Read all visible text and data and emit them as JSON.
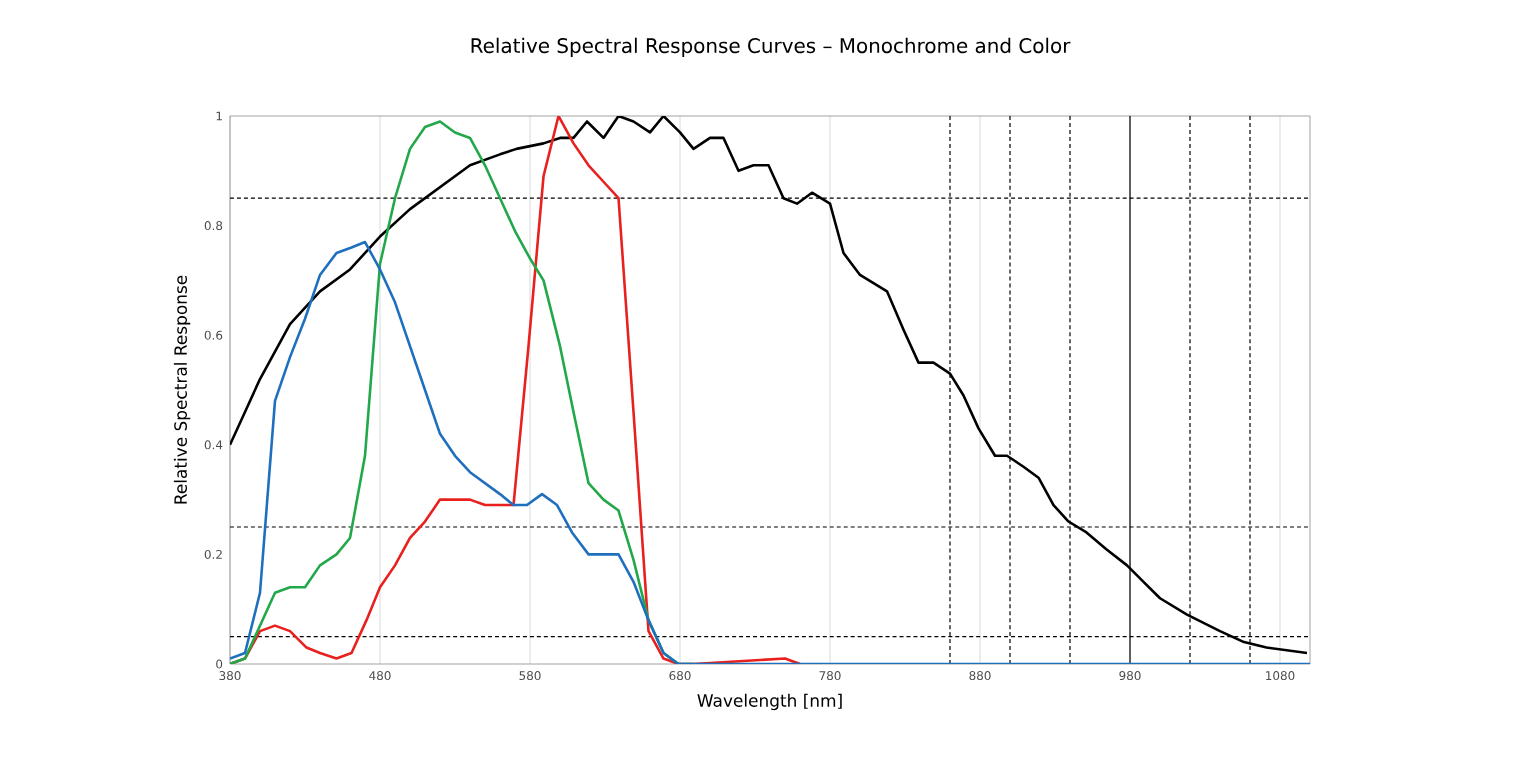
{
  "chart_data": {
    "type": "line",
    "title": "Relative Spectral Response Curves – Monochrome and Color",
    "xlabel": "Wavelength [nm]",
    "ylabel": "Relative Spectral Response",
    "xlim": [
      380,
      1100
    ],
    "xticks": [
      380,
      480,
      580,
      680,
      780,
      880,
      980,
      1080
    ],
    "ylim": [
      0,
      1
    ],
    "yticks": [
      0,
      0.2,
      0.4,
      0.6,
      0.8,
      1
    ],
    "grid": "x",
    "marker": "none",
    "line_style": "solid",
    "ref_lines": [
      {
        "axis": "y",
        "value": 0.85,
        "line_style": "dashed",
        "color": "#000000"
      },
      {
        "axis": "y",
        "value": 0.25,
        "line_style": "dashed",
        "color": "#000000"
      },
      {
        "axis": "y",
        "value": 0.05,
        "line_style": "dashed",
        "color": "#000000"
      },
      {
        "axis": "x",
        "value": 860,
        "line_style": "dashed",
        "color": "#000000"
      },
      {
        "axis": "x",
        "value": 900,
        "line_style": "dashed",
        "color": "#000000"
      },
      {
        "axis": "x",
        "value": 940,
        "line_style": "dashed",
        "color": "#000000"
      },
      {
        "axis": "x",
        "value": 980,
        "line_style": "solid",
        "color": "#000000"
      },
      {
        "axis": "x",
        "value": 1020,
        "line_style": "dashed",
        "color": "#000000"
      },
      {
        "axis": "x",
        "value": 1060,
        "line_style": "dashed",
        "color": "#000000"
      }
    ],
    "series": [
      {
        "color": "#000000",
        "x": [
          380,
          400,
          420,
          440,
          460,
          480,
          500,
          520,
          540,
          560,
          571,
          589,
          600,
          609,
          618,
          629,
          639,
          649,
          660,
          669,
          680,
          689,
          700,
          709,
          719,
          729,
          739,
          749,
          758,
          768,
          780,
          789,
          800,
          818,
          829,
          839,
          849,
          860,
          869,
          879,
          890,
          898,
          909,
          919,
          929,
          939,
          951,
          964,
          978,
          989,
          1000,
          1018,
          1040,
          1056,
          1071,
          1098
        ],
        "values": [
          0.4,
          0.52,
          0.62,
          0.68,
          0.72,
          0.78,
          0.83,
          0.87,
          0.91,
          0.93,
          0.94,
          0.95,
          0.96,
          0.96,
          0.99,
          0.96,
          1.0,
          0.99,
          0.97,
          1.0,
          0.97,
          0.94,
          0.96,
          0.96,
          0.9,
          0.91,
          0.91,
          0.85,
          0.84,
          0.86,
          0.84,
          0.75,
          0.71,
          0.68,
          0.61,
          0.55,
          0.55,
          0.53,
          0.49,
          0.43,
          0.38,
          0.38,
          0.36,
          0.34,
          0.29,
          0.26,
          0.24,
          0.21,
          0.18,
          0.15,
          0.12,
          0.09,
          0.06,
          0.04,
          0.03,
          0.02
        ]
      },
      {
        "color": "#e8201e",
        "x": [
          380,
          390,
          400,
          410,
          420,
          431,
          440,
          451,
          461,
          471,
          480,
          490,
          500,
          510,
          520,
          530,
          540,
          550,
          560,
          569,
          579,
          589,
          599,
          609,
          619,
          629,
          639,
          649,
          659,
          669,
          679,
          689,
          750,
          760
        ],
        "values": [
          0.0,
          0.01,
          0.06,
          0.07,
          0.06,
          0.03,
          0.02,
          0.01,
          0.02,
          0.08,
          0.14,
          0.18,
          0.23,
          0.26,
          0.3,
          0.3,
          0.3,
          0.29,
          0.29,
          0.29,
          0.58,
          0.89,
          1.0,
          0.95,
          0.91,
          0.88,
          0.85,
          0.46,
          0.06,
          0.01,
          0.0,
          0.0,
          0.01,
          0.0
        ]
      },
      {
        "color": "#22a84a",
        "x": [
          380,
          390,
          400,
          410,
          420,
          430,
          440,
          451,
          460,
          470,
          480,
          490,
          500,
          510,
          520,
          530,
          540,
          550,
          560,
          570,
          580,
          589,
          600,
          609,
          619,
          629,
          639,
          649,
          659,
          669,
          679,
          689
        ],
        "values": [
          0.0,
          0.01,
          0.07,
          0.13,
          0.14,
          0.14,
          0.18,
          0.2,
          0.23,
          0.38,
          0.73,
          0.85,
          0.94,
          0.98,
          0.99,
          0.97,
          0.96,
          0.91,
          0.85,
          0.79,
          0.74,
          0.7,
          0.58,
          0.46,
          0.33,
          0.3,
          0.28,
          0.19,
          0.08,
          0.02,
          0.0,
          0.0
        ]
      },
      {
        "color": "#1f6fbf",
        "x": [
          380,
          390,
          400,
          410,
          420,
          430,
          440,
          451,
          461,
          470,
          480,
          490,
          500,
          510,
          520,
          530,
          540,
          550,
          560,
          569,
          578,
          588,
          598,
          608,
          619,
          629,
          639,
          649,
          659,
          669,
          679,
          689,
          800,
          900,
          1000,
          1100
        ],
        "values": [
          0.01,
          0.02,
          0.13,
          0.48,
          0.56,
          0.63,
          0.71,
          0.75,
          0.76,
          0.77,
          0.72,
          0.66,
          0.58,
          0.5,
          0.42,
          0.38,
          0.35,
          0.33,
          0.31,
          0.29,
          0.29,
          0.31,
          0.29,
          0.24,
          0.2,
          0.2,
          0.2,
          0.15,
          0.08,
          0.02,
          0.0,
          0.0,
          0.0,
          0.0,
          0.0,
          0.0
        ]
      }
    ]
  }
}
